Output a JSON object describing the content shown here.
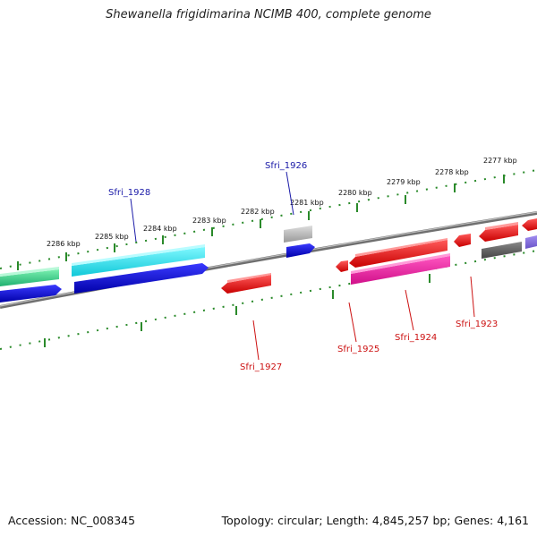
{
  "title": "Shewanella frigidimarina NCIMB 400, complete genome",
  "footer": {
    "accession": "Accession: NC_008345",
    "summary": "Topology: circular; Length: 4,845,257 bp; Genes: 4,161"
  },
  "ticks": [
    "2286 kbp",
    "2285 kbp",
    "2284 kbp",
    "2283 kbp",
    "2282 kbp",
    "2281 kbp",
    "2280 kbp",
    "2279 kbp",
    "2278 kbp",
    "2277 kbp"
  ],
  "genes": {
    "sfri_1928": "Sfri_1928",
    "sfri_1926": "Sfri_1926",
    "sfri_1927": "Sfri_1927",
    "sfri_1925": "Sfri_1925",
    "sfri_1924": "Sfri_1924",
    "sfri_1923": "Sfri_1923"
  },
  "colors": {
    "backbone": "#7a7a7a",
    "ticks": "#2a8a2a",
    "plus_label": "#1a1aa8",
    "minus_label": "#cc1111"
  }
}
